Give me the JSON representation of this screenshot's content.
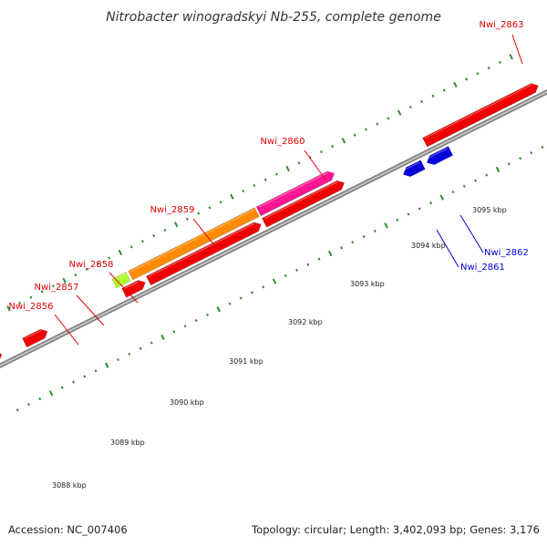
{
  "title": "Nitrobacter winogradskyi Nb-255, complete genome",
  "footer": {
    "accession": "Accession: NC_007406",
    "summary": "Topology: circular; Length: 3,402,093 bp; Genes: 3,176"
  },
  "scale_labels": [
    "3088 kbp",
    "3089 kbp",
    "3090 kbp",
    "3091 kbp",
    "3092 kbp",
    "3093 kbp",
    "3094 kbp",
    "3095 kbp"
  ],
  "gene_labels": [
    {
      "text": "Nwi_2863",
      "color": "#e00000"
    },
    {
      "text": "Nwi_2860",
      "color": "#e00000"
    },
    {
      "text": "Nwi_2859",
      "color": "#e00000"
    },
    {
      "text": "Nwi_2858",
      "color": "#e00000"
    },
    {
      "text": "Nwi_2857",
      "color": "#e00000"
    },
    {
      "text": "Nwi_2856",
      "color": "#e00000"
    },
    {
      "text": "Nwi_2862",
      "color": "#0000cc"
    },
    {
      "text": "Nwi_2861",
      "color": "#0000cc"
    }
  ],
  "colors": {
    "backbone": "#909090",
    "red_gene": "#ee0000",
    "blue_gene": "#0000dd",
    "purple_gene": "#483d8b",
    "orange_gene": "#ff8c00",
    "magenta_gene": "#ff1493",
    "lime_gene": "#adff2f",
    "gray_gene": "#666666",
    "tick": "#2e8b2e"
  }
}
